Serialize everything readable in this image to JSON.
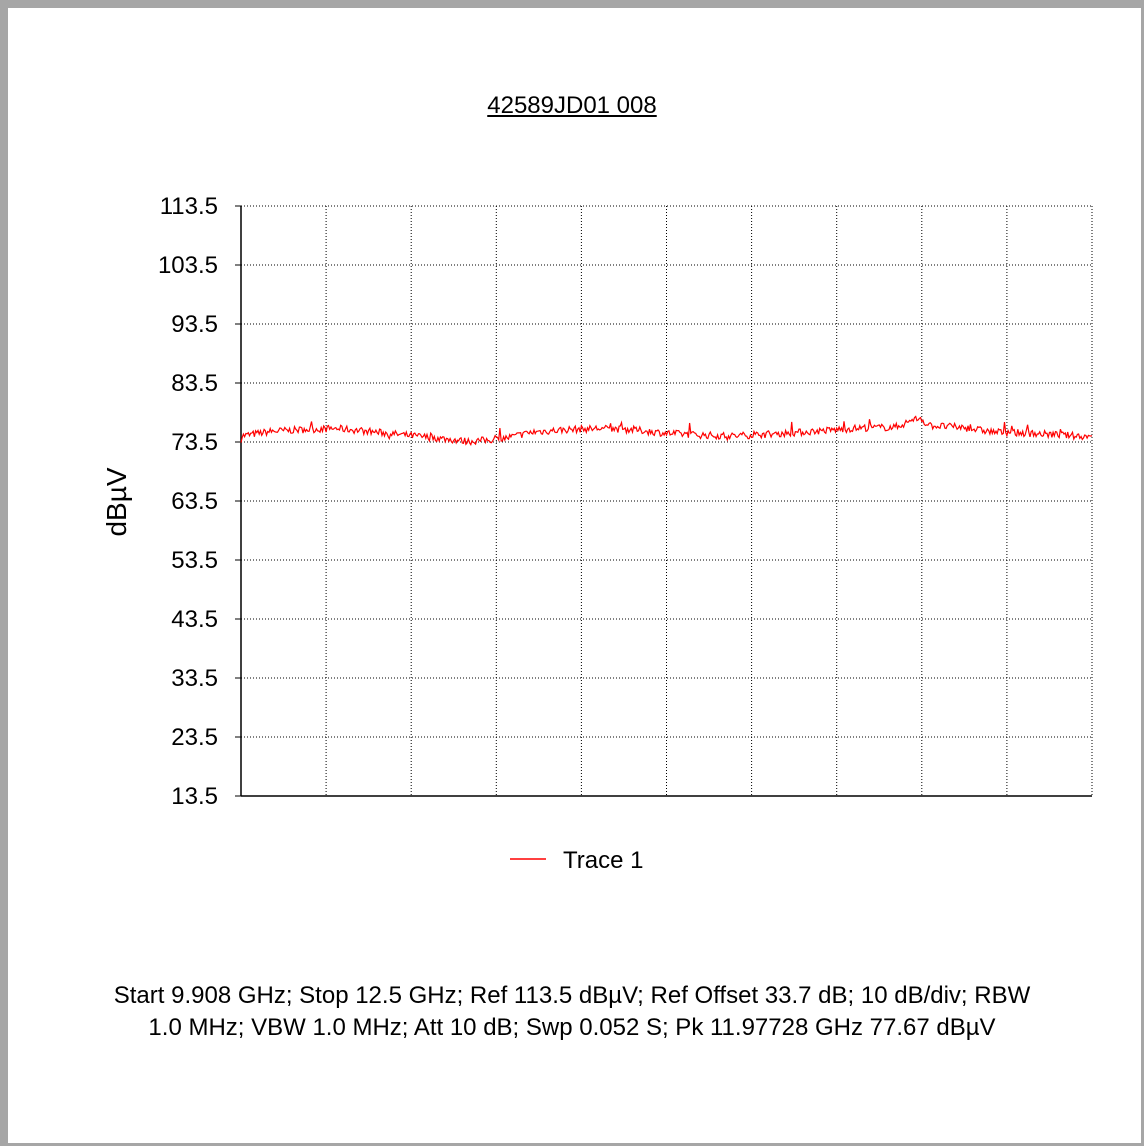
{
  "chart_data": {
    "type": "line",
    "title": "42589JD01 008",
    "xlabel": "",
    "ylabel": "dBµV",
    "ylim": [
      13.5,
      113.5
    ],
    "yticks": [
      "113.5",
      "103.5",
      "93.5",
      "83.5",
      "73.5",
      "63.5",
      "53.5",
      "43.5",
      "33.5",
      "23.5",
      "13.5"
    ],
    "xlim": [
      9.908,
      12.5
    ],
    "x_unit": "GHz",
    "x_divisions": 10,
    "grid": true,
    "legend": "bottom-center",
    "series": [
      {
        "name": "Trace 1",
        "color": "#ff0000",
        "x": [
          9.908,
          9.9,
          10.0,
          10.1,
          10.2,
          10.3,
          10.4,
          10.5,
          10.6,
          10.7,
          10.8,
          10.9,
          11.0,
          11.1,
          11.2,
          11.3,
          11.4,
          11.5,
          11.6,
          11.7,
          11.8,
          11.9,
          11.97728,
          12.0,
          12.1,
          12.2,
          12.3,
          12.4,
          12.5
        ],
        "values": [
          74.0,
          74.5,
          75.3,
          75.6,
          75.8,
          75.3,
          74.7,
          74.2,
          73.6,
          74.0,
          75.2,
          75.6,
          75.8,
          75.6,
          75.0,
          74.7,
          74.5,
          74.8,
          75.1,
          75.5,
          75.9,
          76.0,
          77.67,
          76.3,
          76.0,
          75.2,
          75.0,
          74.7,
          74.4
        ]
      }
    ]
  },
  "footnote": "Start 9.908 GHz; Stop 12.5 GHz; Ref 113.5 dBµV; Ref Offset 33.7 dB; 10 dB/div; RBW 1.0 MHz; VBW 1.0 MHz; Att 10 dB; Swp 0.052 S; Pk 11.97728 GHz 77.67 dBµV"
}
